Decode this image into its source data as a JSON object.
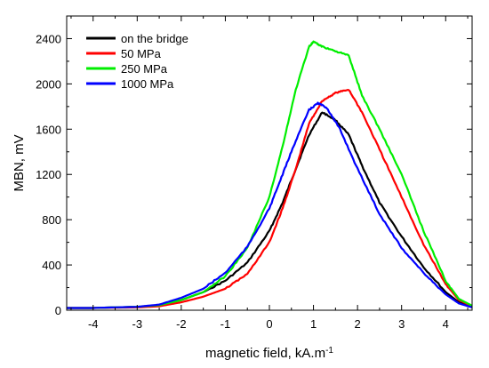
{
  "chart_data": {
    "type": "line",
    "xlabel": "magnetic field, kA.m",
    "xlabel_exponent": "-1",
    "ylabel": "MBN, mV",
    "xlim": [
      -4.6,
      4.6
    ],
    "ylim": [
      0,
      2600
    ],
    "xticks": [
      -4,
      -3,
      -2,
      -1,
      0,
      1,
      2,
      3,
      4
    ],
    "yticks": [
      0,
      400,
      800,
      1200,
      1600,
      2000,
      2400
    ],
    "grid": false,
    "legend_position": "top-left",
    "series": [
      {
        "name": "on the bridge",
        "color": "#000000",
        "x": [
          -4.6,
          -4,
          -3,
          -2.5,
          -2,
          -1.5,
          -1,
          -0.5,
          0,
          0.3,
          0.6,
          0.9,
          1.2,
          1.5,
          1.8,
          2.1,
          2.5,
          3,
          3.5,
          4,
          4.3,
          4.6
        ],
        "y": [
          20,
          20,
          30,
          45,
          90,
          160,
          260,
          420,
          700,
          950,
          1250,
          1550,
          1750,
          1680,
          1550,
          1280,
          950,
          650,
          380,
          160,
          70,
          30
        ]
      },
      {
        "name": "50 MPa",
        "color": "#ff0000",
        "x": [
          -4.6,
          -4,
          -3,
          -2.5,
          -2,
          -1.5,
          -1,
          -0.5,
          0,
          0.3,
          0.6,
          0.9,
          1.2,
          1.5,
          1.8,
          2.1,
          2.5,
          3,
          3.5,
          4,
          4.3,
          4.6
        ],
        "y": [
          20,
          20,
          25,
          35,
          70,
          120,
          190,
          320,
          600,
          900,
          1250,
          1650,
          1850,
          1920,
          1950,
          1750,
          1420,
          1000,
          580,
          230,
          90,
          35
        ]
      },
      {
        "name": "250 MPa",
        "color": "#00ee00",
        "x": [
          -4.6,
          -4,
          -3,
          -2.5,
          -2,
          -1.5,
          -1,
          -0.5,
          0,
          0.3,
          0.6,
          0.9,
          1.0,
          1.2,
          1.5,
          1.8,
          2.1,
          2.5,
          3,
          3.5,
          4,
          4.3,
          4.6
        ],
        "y": [
          20,
          20,
          30,
          45,
          90,
          160,
          300,
          550,
          1000,
          1450,
          1950,
          2330,
          2370,
          2330,
          2290,
          2250,
          1900,
          1600,
          1200,
          700,
          260,
          100,
          40
        ]
      },
      {
        "name": "1000 MPa",
        "color": "#0000ff",
        "x": [
          -4.6,
          -4,
          -3,
          -2.5,
          -2,
          -1.5,
          -1,
          -0.5,
          0,
          0.3,
          0.6,
          0.9,
          1.1,
          1.3,
          1.6,
          2.0,
          2.5,
          3,
          3.5,
          4,
          4.3,
          4.6
        ],
        "y": [
          20,
          20,
          30,
          50,
          110,
          190,
          330,
          560,
          900,
          1200,
          1500,
          1770,
          1830,
          1790,
          1600,
          1250,
          850,
          550,
          330,
          140,
          60,
          25
        ]
      }
    ]
  }
}
